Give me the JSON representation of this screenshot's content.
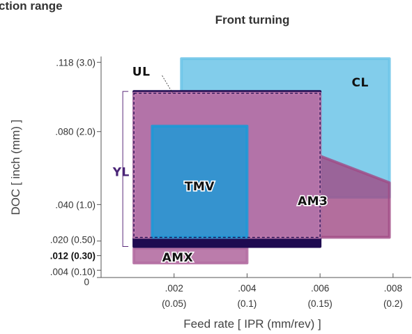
{
  "header": {
    "cut_title": "ction range",
    "subtitle": "Front turning"
  },
  "chart_data": {
    "type": "area",
    "title": "Front turning",
    "xlabel": "Feed rate  [ IPR (mm/rev) ]",
    "ylabel": "DOC  [ inch (mm) ]",
    "xlim": [
      0,
      0.0085
    ],
    "ylim": [
      0,
      0.125
    ],
    "x_ticks": [
      {
        "value": 0.002,
        "label": ".002",
        "sublabel": "(0.05)"
      },
      {
        "value": 0.004,
        "label": ".004",
        "sublabel": "(0.1)"
      },
      {
        "value": 0.006,
        "label": ".006",
        "sublabel": "(0.15)"
      },
      {
        "value": 0.008,
        "label": ".008",
        "sublabel": "(0.2)"
      }
    ],
    "y_ticks": [
      {
        "value": 0,
        "label": "0",
        "bold": false
      },
      {
        "value": 0.004,
        "label": ".004 (0.10)",
        "bold": false
      },
      {
        "value": 0.012,
        "label": ".012 (0.30)",
        "bold": true
      },
      {
        "value": 0.02,
        "label": ".020 (0.50)",
        "bold": false
      },
      {
        "value": 0.04,
        "label": ".040 (1.0)",
        "bold": false
      },
      {
        "value": 0.08,
        "label": ".080 (2.0)",
        "bold": false
      },
      {
        "value": 0.118,
        "label": ".118 (3.0)",
        "bold": false
      }
    ],
    "grades": [
      {
        "name": "CL",
        "color": "#6cc4e8",
        "opacity": 0.85,
        "polygon": [
          [
            0.0022,
            0.12
          ],
          [
            0.0079,
            0.12
          ],
          [
            0.0079,
            0.044
          ],
          [
            0.0022,
            0.044
          ]
        ],
        "label_at": [
          0.0071,
          0.107
        ],
        "label_color": "#111111"
      },
      {
        "name": "AM3",
        "color": "#a04a85",
        "opacity": 0.8,
        "polygon": [
          [
            0.004,
            0.082
          ],
          [
            0.0079,
            0.052
          ],
          [
            0.0079,
            0.022
          ],
          [
            0.004,
            0.022
          ]
        ],
        "label_at": [
          0.0058,
          0.042
        ],
        "label_color": "#ffffff"
      },
      {
        "name": "AMX",
        "color": "#b46ea2",
        "opacity": 0.9,
        "polygon": [
          [
            0.0009,
            0.016
          ],
          [
            0.004,
            0.016
          ],
          [
            0.004,
            0.008
          ],
          [
            0.0009,
            0.008
          ]
        ],
        "label_at": [
          0.0021,
          0.011
        ],
        "label_color": "#ffffff"
      },
      {
        "name": "YL",
        "color": "#1e0a50",
        "opacity": 1.0,
        "polygon": [
          [
            0.0009,
            0.102
          ],
          [
            0.006,
            0.102
          ],
          [
            0.006,
            0.017
          ],
          [
            0.0009,
            0.017
          ]
        ],
        "label_at": [
          0.00055,
          0.058
        ],
        "label_color": "#4a2577"
      },
      {
        "name": "UL",
        "color": "#c07db0",
        "opacity": 0.92,
        "polygon": [
          [
            0.0009,
            0.101
          ],
          [
            0.006,
            0.101
          ],
          [
            0.006,
            0.022
          ],
          [
            0.0009,
            0.022
          ]
        ],
        "label_at": [
          0.0011,
          0.113
        ],
        "label_color": "#111111"
      },
      {
        "name": "TMV",
        "color": "#1a9ad8",
        "opacity": 0.82,
        "polygon": [
          [
            0.0014,
            0.083
          ],
          [
            0.004,
            0.083
          ],
          [
            0.004,
            0.022
          ],
          [
            0.0014,
            0.022
          ]
        ],
        "label_at": [
          0.0027,
          0.05
        ],
        "label_color": "#ffffff"
      }
    ]
  }
}
